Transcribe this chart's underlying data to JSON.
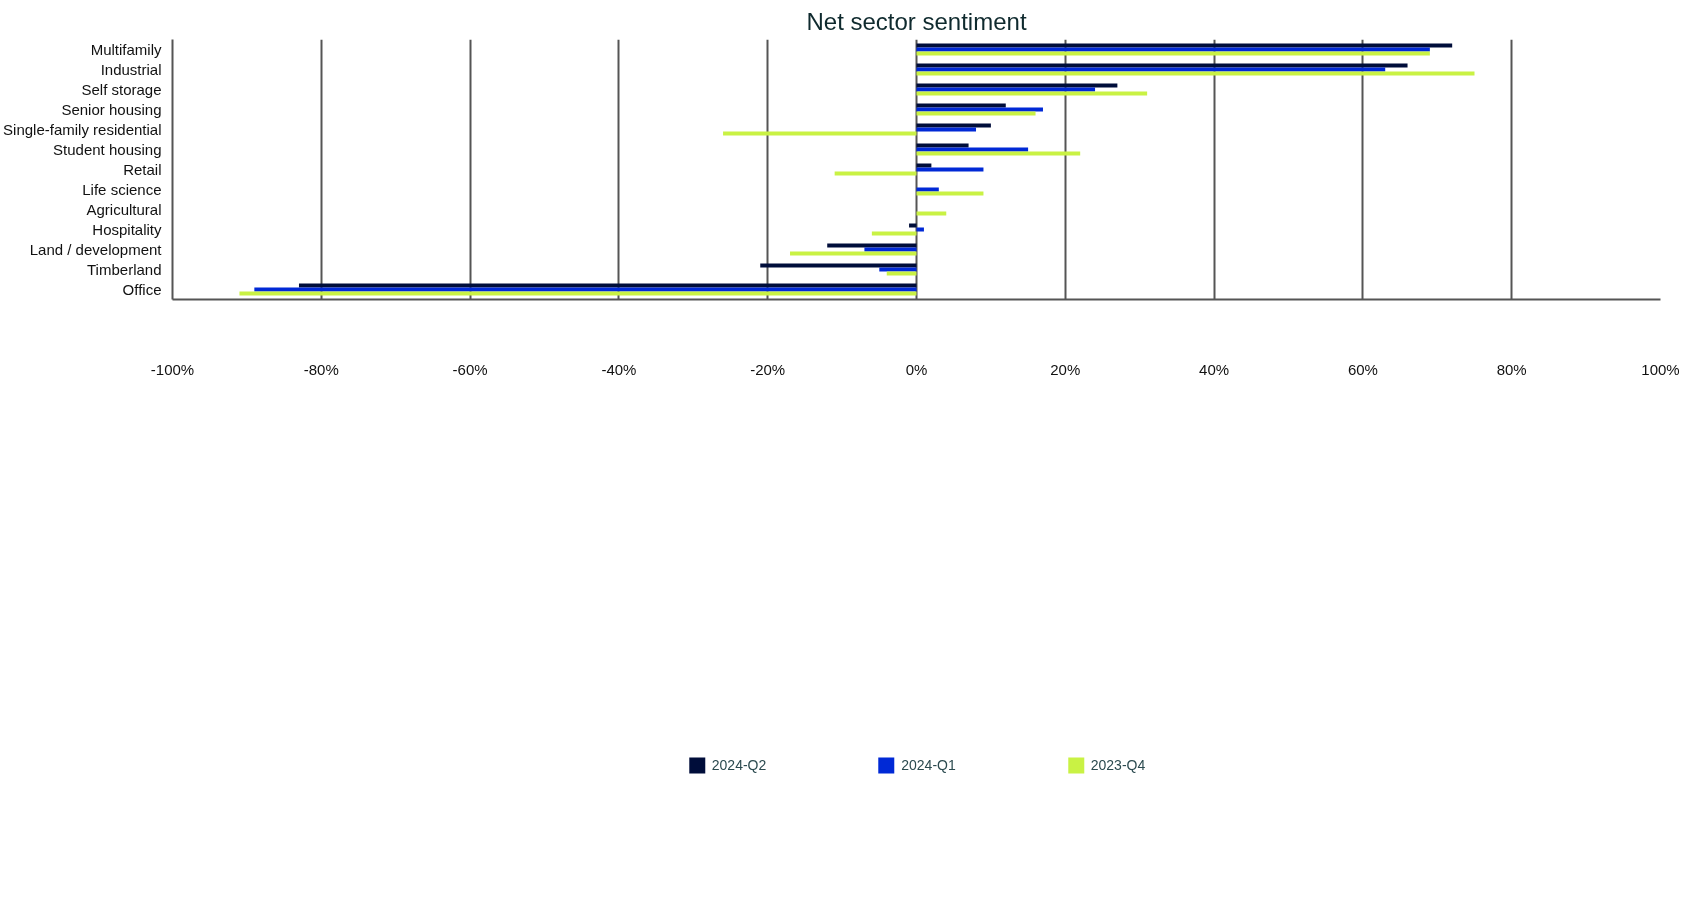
{
  "chart_data": {
    "type": "bar",
    "orientation": "horizontal",
    "title": "Net sector sentiment",
    "categories": [
      "Multifamily",
      "Industrial",
      "Self storage",
      "Senior housing",
      "Single-family residential",
      "Student housing",
      "Retail",
      "Life science",
      "Agricultural",
      "Hospitality",
      "Land / development",
      "Timberland",
      "Office"
    ],
    "series": [
      {
        "name": "2024-Q2",
        "color": "#000d3a",
        "values": [
          72,
          66,
          27,
          12,
          10,
          7,
          2,
          0,
          0,
          -1,
          -12,
          -21,
          -83
        ]
      },
      {
        "name": "2024-Q1",
        "color": "#0029d6",
        "values": [
          69,
          63,
          24,
          17,
          8,
          15,
          9,
          3,
          0,
          1,
          -7,
          -5,
          -89
        ]
      },
      {
        "name": "2023-Q4",
        "color": "#c9f244",
        "values": [
          69,
          75,
          31,
          16,
          -26,
          22,
          -11,
          9,
          4,
          -6,
          -17,
          -4,
          -91
        ]
      }
    ],
    "xlim": [
      -100,
      100
    ],
    "xticks": [
      {
        "value": -100,
        "label": "-100%"
      },
      {
        "value": -80,
        "label": "-80%"
      },
      {
        "value": -60,
        "label": "-60%"
      },
      {
        "value": -40,
        "label": "-40%"
      },
      {
        "value": -20,
        "label": "-20%"
      },
      {
        "value": 0,
        "label": "0%"
      },
      {
        "value": 20,
        "label": "20%"
      },
      {
        "value": 40,
        "label": "40%"
      },
      {
        "value": 60,
        "label": "60%"
      },
      {
        "value": 80,
        "label": "80%"
      },
      {
        "value": 100,
        "label": "100%"
      }
    ],
    "grid": "x",
    "legend": "bottom"
  }
}
